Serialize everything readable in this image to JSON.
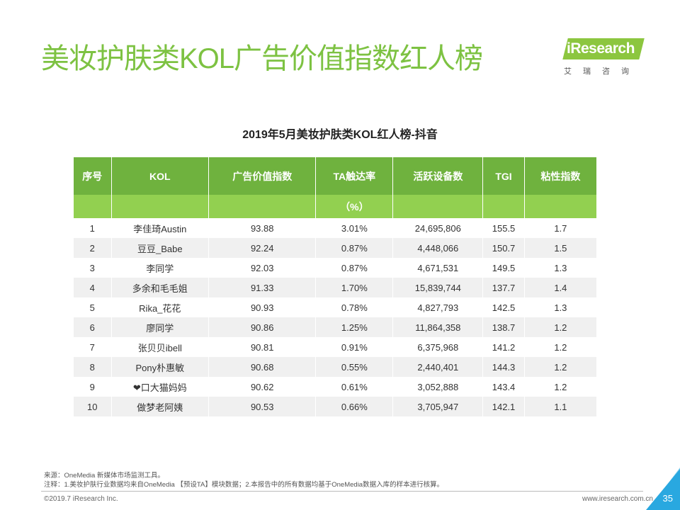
{
  "header": {
    "title": "美妆护肤类KOL广告价值指数红人榜",
    "logo": "iResearch",
    "logo_sub": "艾瑞咨询"
  },
  "table": {
    "title": "2019年5月美妆护肤类KOL红人榜-抖音",
    "columns": [
      {
        "label": "序号"
      },
      {
        "label": "KOL"
      },
      {
        "label": "广告价值指数"
      },
      {
        "label": "TA触达率",
        "unit": "（%）"
      },
      {
        "label": "活跃设备数"
      },
      {
        "label": "TGI"
      },
      {
        "label": "粘性指数"
      }
    ],
    "rows": [
      [
        "1",
        "李佳琦Austin",
        "93.88",
        "3.01%",
        "24,695,806",
        "155.5",
        "1.7"
      ],
      [
        "2",
        "豆豆_Babe",
        "92.24",
        "0.87%",
        "4,448,066",
        "150.7",
        "1.5"
      ],
      [
        "3",
        "李同学",
        "92.03",
        "0.87%",
        "4,671,531",
        "149.5",
        "1.3"
      ],
      [
        "4",
        "多余和毛毛姐",
        "91.33",
        "1.70%",
        "15,839,744",
        "137.7",
        "1.4"
      ],
      [
        "5",
        "Rika_花花",
        "90.93",
        "0.78%",
        "4,827,793",
        "142.5",
        "1.3"
      ],
      [
        "6",
        "廖同学",
        "90.86",
        "1.25%",
        "11,864,358",
        "138.7",
        "1.2"
      ],
      [
        "7",
        "张贝贝ibell",
        "90.81",
        "0.91%",
        "6,375,968",
        "141.2",
        "1.2"
      ],
      [
        "8",
        "Pony朴惠敏",
        "90.68",
        "0.55%",
        "2,440,401",
        "144.3",
        "1.2"
      ],
      [
        "9",
        "❤口大猫妈妈",
        "90.62",
        "0.61%",
        "3,052,888",
        "143.4",
        "1.2"
      ],
      [
        "10",
        "做梦老阿姨",
        "90.53",
        "0.66%",
        "3,705,947",
        "142.1",
        "1.1"
      ]
    ]
  },
  "footer": {
    "source": "来源：OneMedia 新媒体市场监测工具。",
    "note": "注释：1.美妆护肤行业数据均来自OneMedia 【预设TA】模块数据；2.本报告中的所有数据均基于OneMedia数据入库的样本进行核算。",
    "copyright": "©2019.7 iResearch Inc.",
    "website": "www.iresearch.com.cn",
    "page": "35"
  }
}
